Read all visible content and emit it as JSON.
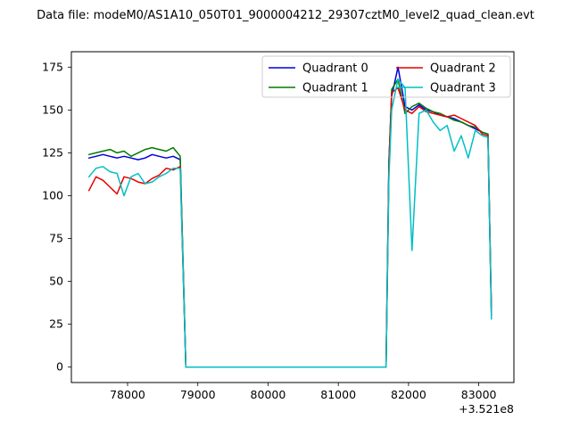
{
  "title": "Data file: modeM0/AS1A10_050T01_9000004212_29307cztM0_level2_quad_clean.evt",
  "chart_data": {
    "type": "line",
    "title": "Data file: modeM0/AS1A10_050T01_9000004212_29307cztM0_level2_quad_clean.evt",
    "xlabel": "",
    "ylabel": "",
    "x_offset_label": "+3.521e8",
    "grid": false,
    "legend_position": "upper center, 2 columns",
    "xlim": [
      77200,
      83500
    ],
    "ylim": [
      -9,
      184
    ],
    "xticks": [
      78000,
      79000,
      80000,
      81000,
      82000,
      83000
    ],
    "yticks": [
      0,
      25,
      50,
      75,
      100,
      125,
      150,
      175
    ],
    "x": [
      77450,
      77550,
      77650,
      77750,
      77850,
      77950,
      78050,
      78150,
      78250,
      78350,
      78450,
      78550,
      78650,
      78750,
      78830,
      79200,
      79800,
      80400,
      81000,
      81600,
      81680,
      81720,
      81760,
      81850,
      81950,
      82050,
      82150,
      82250,
      82350,
      82450,
      82550,
      82650,
      82750,
      82850,
      82950,
      83050,
      83130,
      83180
    ],
    "series": [
      {
        "name": "Quadrant 0",
        "color": "#0000dd",
        "values": [
          122,
          123,
          124,
          123,
          122,
          123,
          122,
          121,
          122,
          124,
          123,
          122,
          123,
          121,
          0,
          0,
          0,
          0,
          0,
          0,
          0,
          120,
          158,
          175,
          152,
          150,
          153,
          150,
          149,
          147,
          146,
          145,
          143,
          141,
          139,
          137,
          136,
          30
        ]
      },
      {
        "name": "Quadrant 1",
        "color": "#007d00",
        "values": [
          124,
          125,
          126,
          127,
          125,
          126,
          123,
          125,
          127,
          128,
          127,
          126,
          128,
          123,
          0,
          0,
          0,
          0,
          0,
          0,
          0,
          118,
          162,
          168,
          148,
          152,
          154,
          151,
          149,
          148,
          146,
          144,
          143,
          141,
          140,
          137,
          136,
          31
        ]
      },
      {
        "name": "Quadrant 2",
        "color": "#e60000",
        "values": [
          103,
          111,
          109,
          105,
          101,
          111,
          110,
          108,
          107,
          110,
          112,
          116,
          115,
          117,
          0,
          0,
          0,
          0,
          0,
          0,
          0,
          115,
          160,
          163,
          150,
          148,
          152,
          149,
          148,
          147,
          146,
          147,
          145,
          143,
          141,
          136,
          135,
          32
        ]
      },
      {
        "name": "Quadrant 3",
        "color": "#00bfc4",
        "values": [
          111,
          116,
          117,
          114,
          113,
          100,
          111,
          113,
          107,
          108,
          111,
          113,
          116,
          116,
          0,
          0,
          0,
          0,
          0,
          0,
          0,
          110,
          150,
          168,
          163,
          68,
          148,
          150,
          143,
          138,
          141,
          126,
          135,
          122,
          138,
          135,
          134,
          28
        ]
      }
    ]
  }
}
